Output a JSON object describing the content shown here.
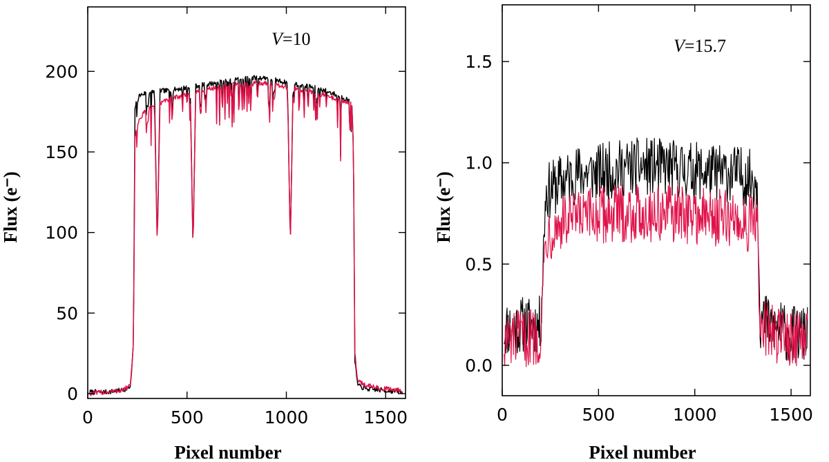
{
  "chart_data": [
    {
      "type": "line",
      "title": "",
      "annotation": {
        "variable": "V",
        "text": "=10"
      },
      "xlabel": "Pixel number",
      "ylabel": "Flux (e⁻)",
      "xlim": [
        0,
        1600
      ],
      "ylim": [
        -3,
        240
      ],
      "xticks": [
        0,
        500,
        1000,
        1500
      ],
      "xtick_labels": [
        "0",
        "500",
        "1000",
        "1500"
      ],
      "yticks": [
        0,
        50,
        100,
        150,
        200
      ],
      "ytick_labels": [
        "0",
        "50",
        "100",
        "150",
        "200"
      ],
      "series": [
        {
          "name": "black",
          "color": "#000000",
          "points": [
            [
              10,
              1
            ],
            [
              100,
              1
            ],
            [
              170,
              2
            ],
            [
              215,
              4
            ],
            [
              230,
              30
            ],
            [
              238,
              178
            ],
            [
              260,
              185
            ],
            [
              300,
              187
            ],
            [
              360,
              188
            ],
            [
              400,
              188
            ],
            [
              500,
              190
            ],
            [
              600,
              192
            ],
            [
              700,
              194
            ],
            [
              800,
              196
            ],
            [
              900,
              196
            ],
            [
              1000,
              193
            ],
            [
              1100,
              191
            ],
            [
              1200,
              188
            ],
            [
              1300,
              183
            ],
            [
              1330,
              180
            ],
            [
              1338,
              150
            ],
            [
              1345,
              20
            ],
            [
              1360,
              5
            ],
            [
              1400,
              3
            ],
            [
              1500,
              2
            ],
            [
              1580,
              1
            ]
          ]
        },
        {
          "name": "red",
          "color": "#e0134a",
          "points": [
            [
              10,
              0
            ],
            [
              100,
              1
            ],
            [
              170,
              2
            ],
            [
              215,
              5
            ],
            [
              230,
              30
            ],
            [
              238,
              160
            ],
            [
              260,
              170
            ],
            [
              300,
              177
            ],
            [
              360,
              180
            ],
            [
              400,
              182
            ],
            [
              500,
              186
            ],
            [
              600,
              189
            ],
            [
              700,
              191
            ],
            [
              800,
              192
            ],
            [
              900,
              193
            ],
            [
              1000,
              190
            ],
            [
              1100,
              188
            ],
            [
              1200,
              185
            ],
            [
              1300,
              181
            ],
            [
              1330,
              179
            ],
            [
              1338,
              150
            ],
            [
              1345,
              25
            ],
            [
              1360,
              8
            ],
            [
              1400,
              5
            ],
            [
              1500,
              3
            ],
            [
              1580,
              2
            ]
          ]
        }
      ],
      "dips": [
        {
          "x": 350,
          "red": 92,
          "black": 92
        },
        {
          "x": 530,
          "red": 90,
          "black": 90
        },
        {
          "x": 1020,
          "red": 92,
          "black": 92
        }
      ],
      "noise_seed": 7,
      "noise_amp": 1.5,
      "spike_count": 55,
      "spike_depth": [
        8,
        30
      ],
      "spike_range": [
        240,
        1330
      ]
    },
    {
      "type": "line",
      "title": "",
      "annotation": {
        "variable": "V",
        "text": "=15.7"
      },
      "xlabel": "Pixel number",
      "ylabel": "Flux (e⁻)",
      "xlim": [
        0,
        1600
      ],
      "ylim": [
        -0.15,
        1.78
      ],
      "xticks": [
        0,
        500,
        1000,
        1500
      ],
      "xtick_labels": [
        "0",
        "500",
        "1000",
        "1500"
      ],
      "yticks": [
        0.0,
        0.5,
        1.0,
        1.5
      ],
      "ytick_labels": [
        "0.0",
        "0.5",
        "1.0",
        "1.5"
      ],
      "series": [
        {
          "name": "black",
          "color": "#000000",
          "points": [
            [
              10,
              0.18
            ],
            [
              100,
              0.2
            ],
            [
              200,
              0.2
            ],
            [
              225,
              0.85
            ],
            [
              300,
              0.9
            ],
            [
              400,
              0.95
            ],
            [
              500,
              0.95
            ],
            [
              600,
              0.97
            ],
            [
              700,
              0.98
            ],
            [
              800,
              0.98
            ],
            [
              900,
              0.97
            ],
            [
              1000,
              0.96
            ],
            [
              1100,
              0.95
            ],
            [
              1200,
              0.95
            ],
            [
              1300,
              0.92
            ],
            [
              1325,
              0.9
            ],
            [
              1340,
              0.22
            ],
            [
              1400,
              0.2
            ],
            [
              1500,
              0.15
            ],
            [
              1580,
              0.15
            ]
          ]
        },
        {
          "name": "red",
          "color": "#e0134a",
          "points": [
            [
              10,
              0.12
            ],
            [
              100,
              0.13
            ],
            [
              200,
              0.15
            ],
            [
              225,
              0.65
            ],
            [
              300,
              0.7
            ],
            [
              400,
              0.72
            ],
            [
              500,
              0.74
            ],
            [
              600,
              0.75
            ],
            [
              700,
              0.75
            ],
            [
              800,
              0.75
            ],
            [
              900,
              0.75
            ],
            [
              1000,
              0.74
            ],
            [
              1100,
              0.73
            ],
            [
              1200,
              0.72
            ],
            [
              1300,
              0.7
            ],
            [
              1325,
              0.68
            ],
            [
              1340,
              0.18
            ],
            [
              1400,
              0.16
            ],
            [
              1500,
              0.14
            ],
            [
              1580,
              0.12
            ]
          ]
        }
      ],
      "noise_seed": 11,
      "noise_amp": 0.09,
      "spike_count": 0,
      "spike_depth": [
        0,
        0
      ],
      "spike_range": [
        0,
        0
      ]
    }
  ]
}
